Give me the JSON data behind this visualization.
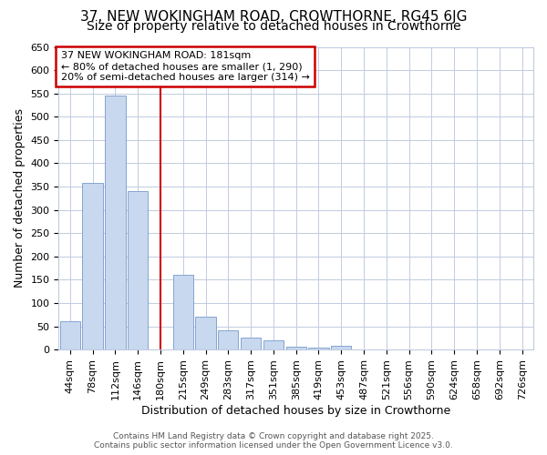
{
  "title1": "37, NEW WOKINGHAM ROAD, CROWTHORNE, RG45 6JG",
  "title2": "Size of property relative to detached houses in Crowthorne",
  "xlabel": "Distribution of detached houses by size in Crowthorne",
  "ylabel": "Number of detached properties",
  "bar_labels": [
    "44sqm",
    "78sqm",
    "112sqm",
    "146sqm",
    "180sqm",
    "215sqm",
    "249sqm",
    "283sqm",
    "317sqm",
    "351sqm",
    "385sqm",
    "419sqm",
    "453sqm",
    "487sqm",
    "521sqm",
    "556sqm",
    "590sqm",
    "624sqm",
    "658sqm",
    "692sqm",
    "726sqm"
  ],
  "bar_values": [
    60,
    357,
    545,
    340,
    0,
    160,
    70,
    42,
    25,
    20,
    7,
    5,
    8,
    0,
    0,
    0,
    0,
    0,
    0,
    0,
    0
  ],
  "bar_color": "#c8d8ee",
  "bar_edge_color": "#7799cc",
  "red_line_index": 4,
  "annotation_title": "37 NEW WOKINGHAM ROAD: 181sqm",
  "annotation_line1": "← 80% of detached houses are smaller (1, 290)",
  "annotation_line2": "20% of semi-detached houses are larger (314) →",
  "annotation_box_color": "#ffffff",
  "annotation_box_edge": "#cc0000",
  "background_color": "#ffffff",
  "plot_bg_color": "#ffffff",
  "grid_color": "#c0cce0",
  "ylim": [
    0,
    650
  ],
  "yticks": [
    0,
    50,
    100,
    150,
    200,
    250,
    300,
    350,
    400,
    450,
    500,
    550,
    600,
    650
  ],
  "title1_fontsize": 11,
  "title2_fontsize": 10,
  "xlabel_fontsize": 9,
  "ylabel_fontsize": 9,
  "tick_fontsize": 8,
  "footer_line1": "Contains HM Land Registry data © Crown copyright and database right 2025.",
  "footer_line2": "Contains public sector information licensed under the Open Government Licence v3.0."
}
